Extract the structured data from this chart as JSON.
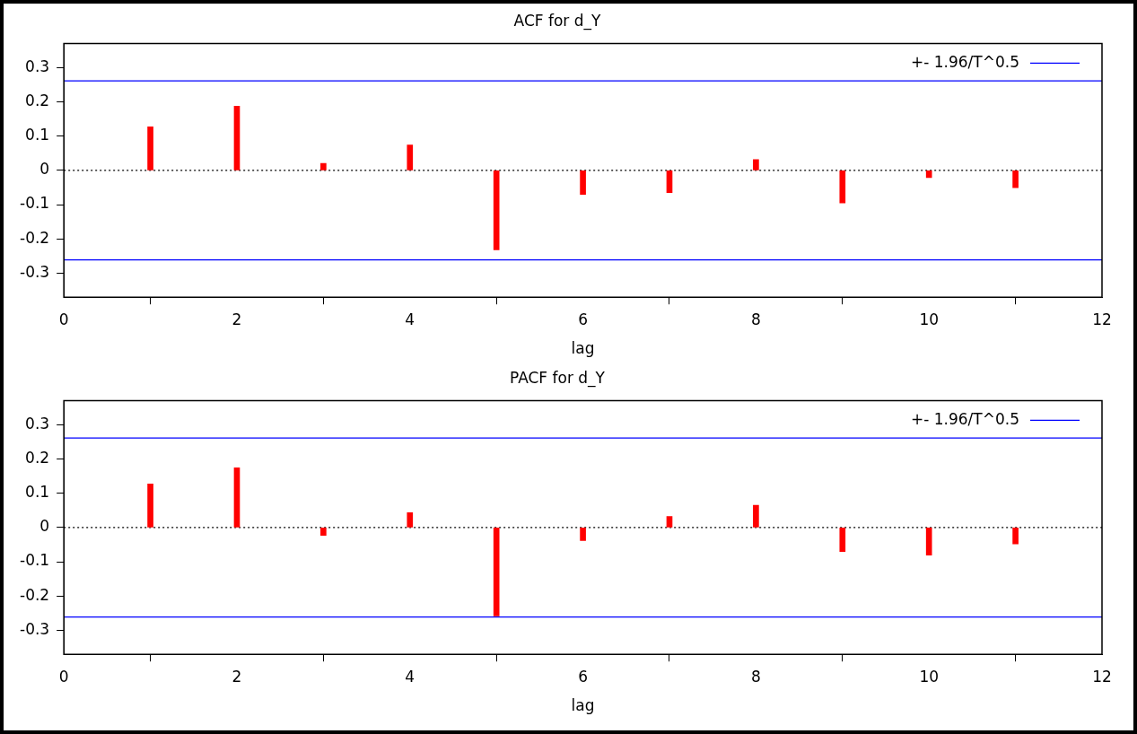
{
  "chart_data": [
    {
      "type": "bar",
      "title": "ACF for d_Y",
      "xlabel": "lag",
      "x": [
        1,
        2,
        3,
        4,
        5,
        6,
        7,
        8,
        9,
        10,
        11
      ],
      "values": [
        0.127,
        0.187,
        0.02,
        0.074,
        -0.232,
        -0.07,
        -0.065,
        0.031,
        -0.095,
        -0.021,
        -0.051
      ],
      "color": "#ff0000",
      "xlim": [
        0,
        12
      ],
      "xticks": [
        0,
        2,
        4,
        6,
        8,
        10,
        12
      ],
      "ylim": [
        -0.37,
        0.37
      ],
      "yticks": [
        -0.3,
        -0.2,
        -0.1,
        0,
        0.1,
        0.2,
        0.3
      ],
      "ref_lines": [
        {
          "axis": "y",
          "value": 0.261,
          "label": "+- 1.96/T^0.5",
          "color": "#0000ff"
        },
        {
          "axis": "y",
          "value": -0.261,
          "color": "#0000ff"
        },
        {
          "axis": "y",
          "value": 0,
          "color": "#000000",
          "line_style": "dotted"
        }
      ],
      "legend": "top right",
      "grid": false
    },
    {
      "type": "bar",
      "title": "PACF for d_Y",
      "xlabel": "lag",
      "x": [
        1,
        2,
        3,
        4,
        5,
        6,
        7,
        8,
        9,
        10,
        11
      ],
      "values": [
        0.127,
        0.174,
        -0.023,
        0.043,
        -0.258,
        -0.038,
        0.032,
        0.065,
        -0.07,
        -0.081,
        -0.048
      ],
      "color": "#ff0000",
      "xlim": [
        0,
        12
      ],
      "xticks": [
        0,
        2,
        4,
        6,
        8,
        10,
        12
      ],
      "ylim": [
        -0.37,
        0.37
      ],
      "yticks": [
        -0.3,
        -0.2,
        -0.1,
        0,
        0.1,
        0.2,
        0.3
      ],
      "ref_lines": [
        {
          "axis": "y",
          "value": 0.261,
          "label": "+- 1.96/T^0.5",
          "color": "#0000ff"
        },
        {
          "axis": "y",
          "value": -0.261,
          "color": "#0000ff"
        },
        {
          "axis": "y",
          "value": 0,
          "color": "#000000",
          "line_style": "dotted"
        }
      ],
      "legend": "top right",
      "grid": false
    }
  ]
}
